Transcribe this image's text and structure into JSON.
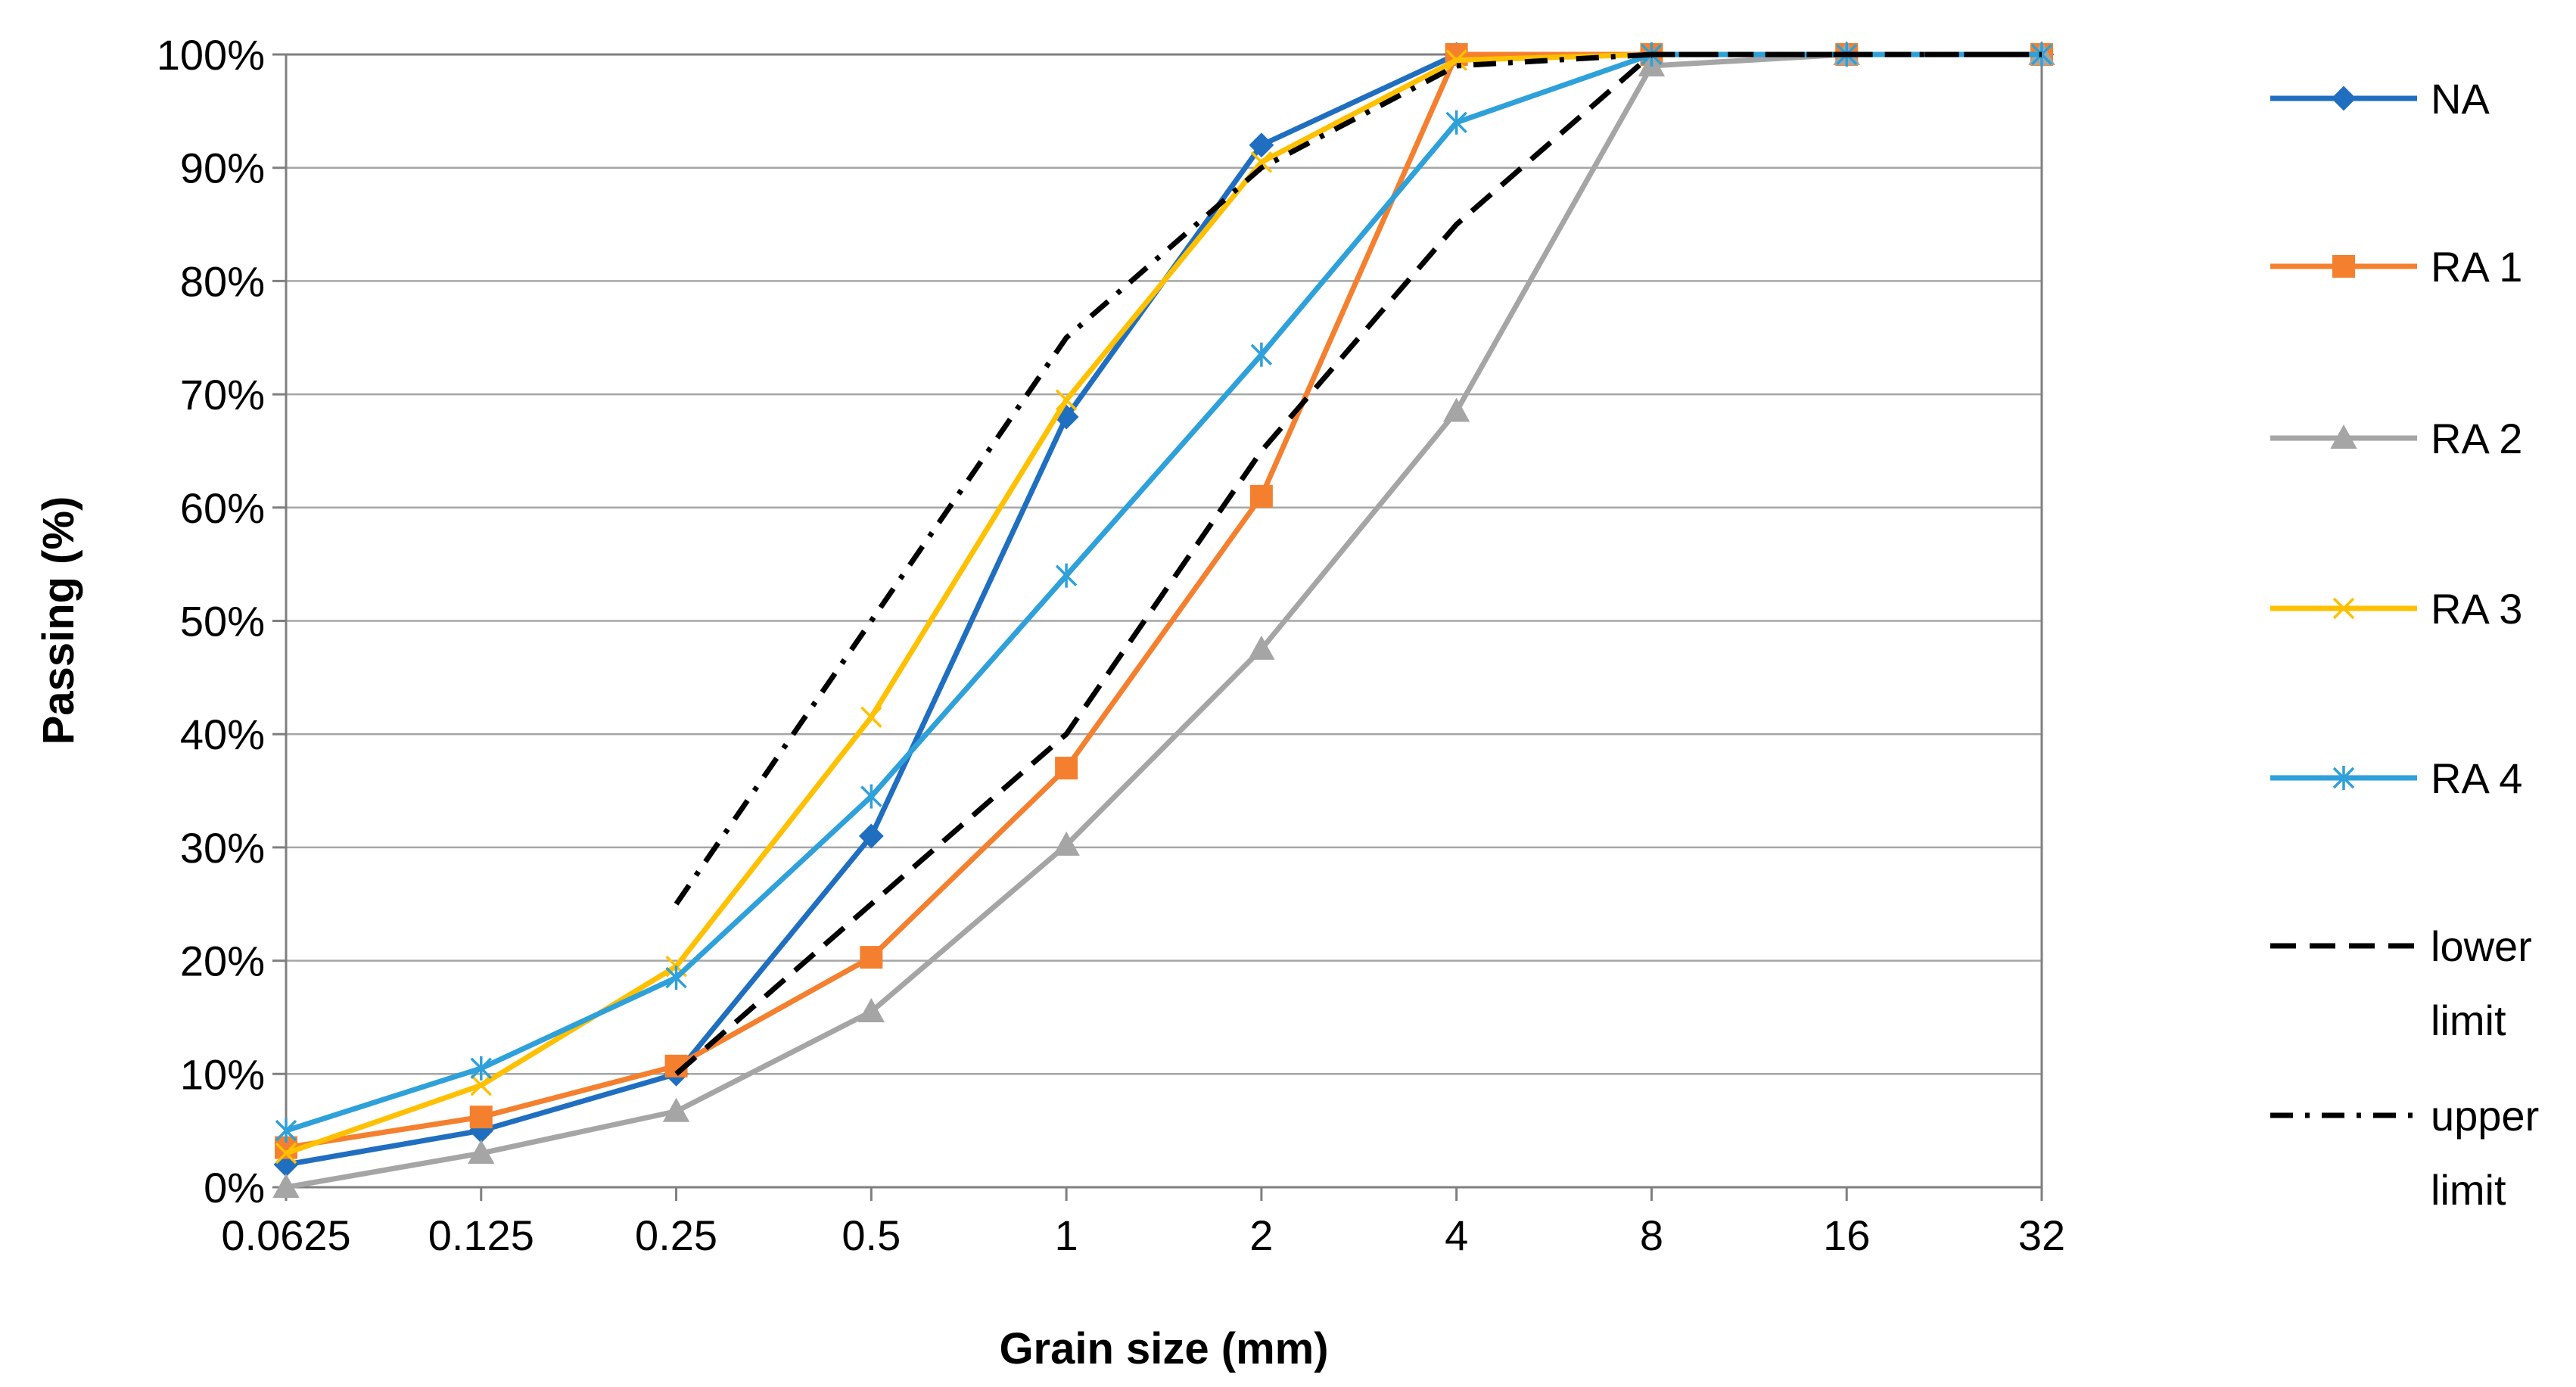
{
  "chart_data": {
    "type": "line",
    "title": "",
    "xlabel": "Grain size (mm)",
    "ylabel": "Passing (%)",
    "x_scale": "log2-categorical",
    "categories": [
      "0.0625",
      "0.125",
      "0.25",
      "0.5",
      "1",
      "2",
      "4",
      "8",
      "16",
      "32"
    ],
    "y_ticks": [
      "0%",
      "10%",
      "20%",
      "30%",
      "40%",
      "50%",
      "60%",
      "70%",
      "80%",
      "90%",
      "100%"
    ],
    "ylim": [
      0,
      100
    ],
    "grid": "horizontal",
    "legend_position": "right",
    "series": [
      {
        "name": "NA",
        "color": "#1f6ec0",
        "marker": "diamond",
        "dash": "solid",
        "values": [
          2,
          5,
          10,
          31,
          68,
          92,
          100,
          100,
          100,
          100
        ]
      },
      {
        "name": "RA 1",
        "color": "#f4802f",
        "marker": "square",
        "dash": "solid",
        "values": [
          3.5,
          6.2,
          10.7,
          20.3,
          37,
          61,
          100,
          100,
          100,
          100
        ]
      },
      {
        "name": "RA 2",
        "color": "#a5a5a5",
        "marker": "triangle",
        "dash": "solid",
        "values": [
          0,
          3,
          6.7,
          15.5,
          30.2,
          47.5,
          68.5,
          99,
          100,
          100
        ]
      },
      {
        "name": "RA 3",
        "color": "#ffc000",
        "marker": "x",
        "dash": "solid",
        "values": [
          3,
          9,
          19.5,
          41.5,
          69.5,
          90.5,
          99.5,
          100,
          100,
          100
        ]
      },
      {
        "name": "RA 4",
        "color": "#2ea0da",
        "marker": "star",
        "dash": "solid",
        "values": [
          5,
          10.5,
          18.5,
          34.5,
          54,
          73.5,
          94,
          100,
          100,
          100
        ]
      },
      {
        "name": "lower limit",
        "color": "#000000",
        "marker": "none",
        "dash": "dash",
        "values": [
          null,
          null,
          10,
          25,
          40,
          65,
          85,
          100,
          100,
          100
        ]
      },
      {
        "name": "upper limit",
        "color": "#000000",
        "marker": "none",
        "dash": "dashdot",
        "values": [
          null,
          null,
          25,
          50,
          75,
          90,
          99,
          100,
          100,
          100
        ]
      }
    ]
  }
}
